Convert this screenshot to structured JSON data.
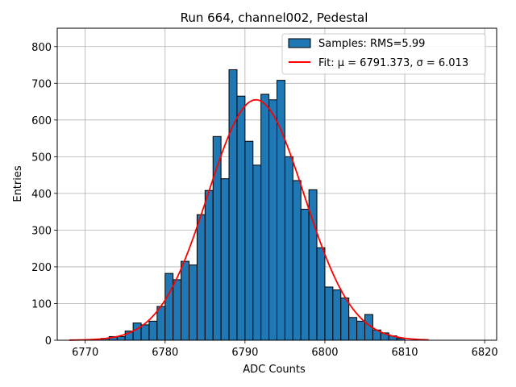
{
  "chart_data": {
    "type": "bar",
    "title": "Run 664, channel002, Pedestal",
    "xlabel": "ADC Counts",
    "ylabel": "Entries",
    "xlim": [
      6766.5,
      6821.5
    ],
    "ylim": [
      0,
      850
    ],
    "xticks": [
      6770,
      6780,
      6790,
      6800,
      6810,
      6820
    ],
    "yticks": [
      0,
      100,
      200,
      300,
      400,
      500,
      600,
      700,
      800
    ],
    "grid": true,
    "legend_position": "top-right",
    "colors": {
      "bars": "#1f77b4",
      "bar_edge": "#000000",
      "fit": "#ff0000",
      "grid": "#b0b0b0"
    },
    "histogram": {
      "name": "Samples: RMS=5.99",
      "bin_edges": [
        6772,
        6773,
        6774,
        6775,
        6776,
        6777,
        6778,
        6779,
        6780,
        6781,
        6782,
        6783,
        6784,
        6785,
        6786,
        6787,
        6788,
        6789,
        6790,
        6791,
        6792,
        6793,
        6794,
        6795,
        6796,
        6797,
        6798,
        6799,
        6800,
        6801,
        6802,
        6803,
        6804,
        6805,
        6806,
        6807,
        6808,
        6809,
        6810
      ],
      "counts": [
        5,
        10,
        10,
        25,
        47,
        42,
        52,
        92,
        182,
        165,
        215,
        205,
        342,
        408,
        555,
        440,
        737,
        665,
        542,
        477,
        670,
        655,
        708,
        500,
        435,
        357,
        410,
        252,
        145,
        137,
        115,
        62,
        52,
        70,
        28,
        20,
        12,
        5
      ]
    },
    "fit": {
      "name": "Fit: μ = 6791.373, σ = 6.013",
      "mu": 6791.373,
      "sigma": 6.013,
      "amplitude": 655,
      "x_range": [
        6768,
        6813
      ]
    }
  }
}
